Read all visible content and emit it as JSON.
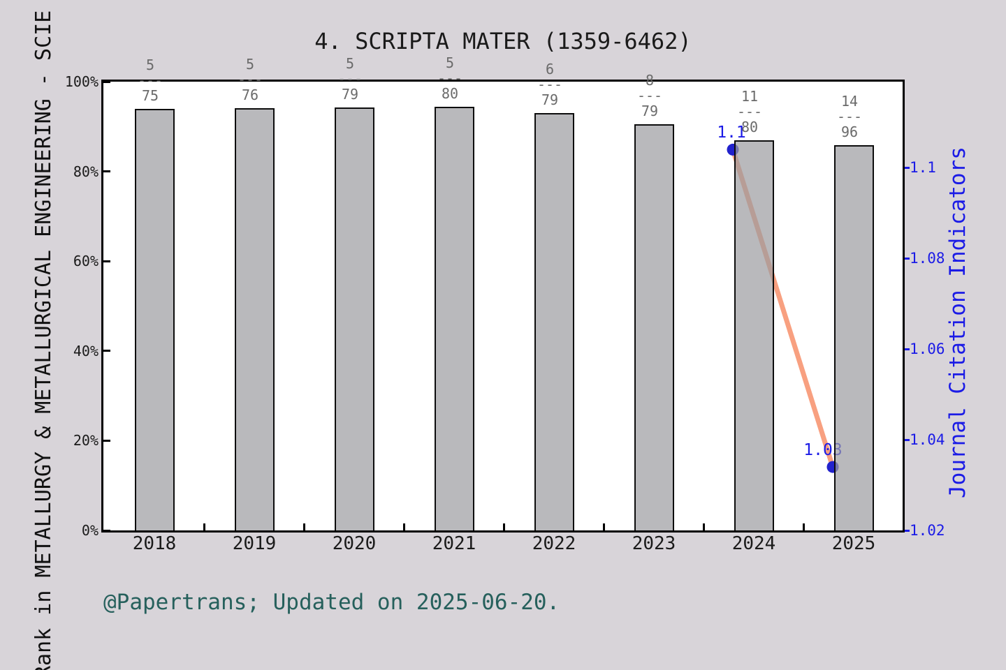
{
  "title": "4. SCRIPTA MATER (1359-6462)",
  "footer": "@Papertrans; Updated on 2025-06-20.",
  "axes": {
    "left_title": "Rank in METALLURGY & METALLURGICAL ENGINEERING - SCIE",
    "right_title": "Journal Citation Indicators"
  },
  "colors": {
    "background": "#d8d4d9",
    "plot_background": "#ffffff",
    "bar_fill": "#b9b9bc",
    "bar_border": "#0d0d0d",
    "line": "#f8a080",
    "point": "#2222cc",
    "right_axis_blue": "#1b1be6",
    "fraction_gray": "#6a6a6a",
    "footer_teal": "#26605c"
  },
  "chart_data": {
    "type": "bar",
    "title": "4. SCRIPTA MATER (1359-6462)",
    "categories": [
      "2018",
      "2019",
      "2020",
      "2021",
      "2022",
      "2023",
      "2024",
      "2025"
    ],
    "bar_series": {
      "name": "Rank percentile in category (higher is better)",
      "rank_fractions": [
        {
          "rank": "5",
          "total": "75"
        },
        {
          "rank": "5",
          "total": "76"
        },
        {
          "rank": "5",
          "total": "79"
        },
        {
          "rank": "5",
          "total": "80"
        },
        {
          "rank": "6",
          "total": "79"
        },
        {
          "rank": "8",
          "total": "79"
        },
        {
          "rank": "11",
          "total": "80"
        },
        {
          "rank": "14",
          "total": "96"
        }
      ],
      "fraction_separator": "---",
      "percentile_values": [
        94.0,
        94.1,
        94.3,
        94.4,
        93.0,
        90.5,
        86.9,
        85.9
      ]
    },
    "line_series": {
      "name": "Journal Citation Indicators",
      "points": [
        {
          "year": "2024",
          "jci_label": "1.1",
          "value": 1.104
        },
        {
          "year": "2025",
          "jci_label": "1.03",
          "value": 1.034
        }
      ]
    },
    "left_axis": {
      "ticks": [
        "0%",
        "20%",
        "40%",
        "60%",
        "80%",
        "100%"
      ],
      "range": [
        0,
        100
      ],
      "grid": false
    },
    "right_axis": {
      "ticks": [
        "1.02",
        "1.04",
        "1.06",
        "1.08",
        "1.1"
      ],
      "range": [
        1.02,
        1.119
      ],
      "grid": false
    }
  }
}
